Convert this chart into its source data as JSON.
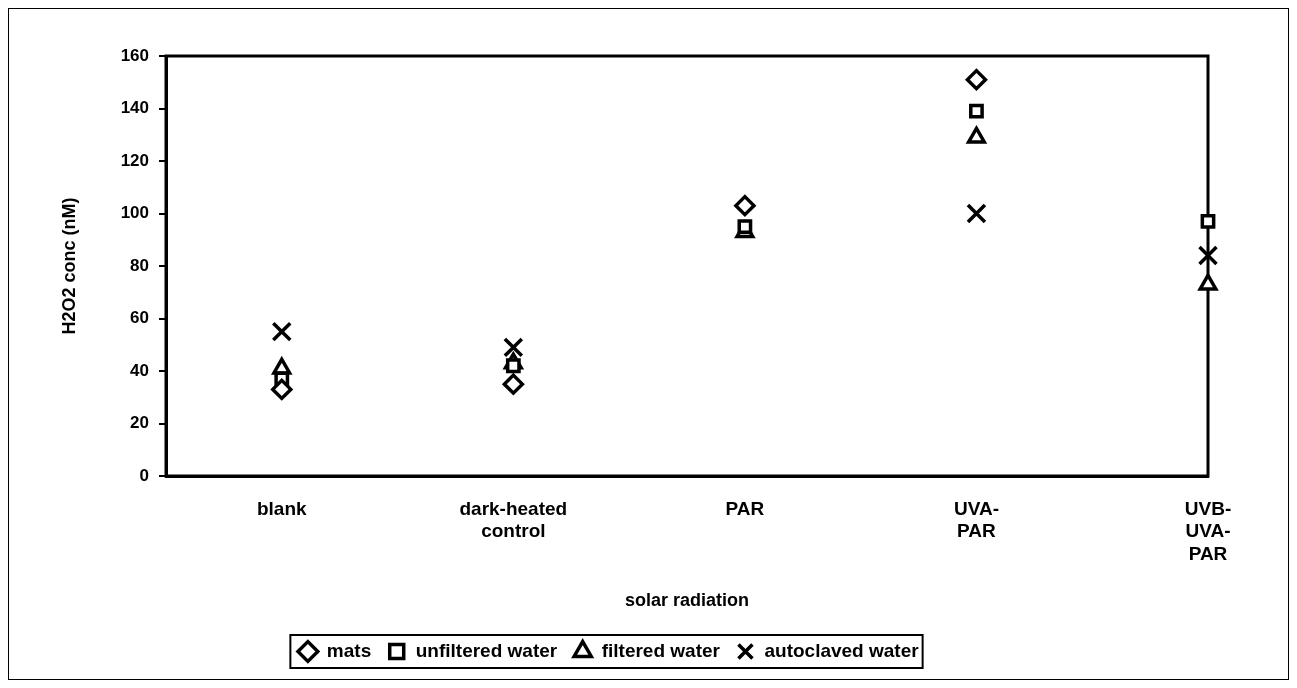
{
  "chart_data": {
    "type": "scatter",
    "xlabel": "solar radiation",
    "ylabel": "H2O2 conc (nM)",
    "categories": [
      "blank",
      "dark-heated control",
      "PAR",
      "UVA-PAR",
      "UVB-UVA-PAR"
    ],
    "series": [
      {
        "name": "mats",
        "color": "#000000",
        "marker": "diamond",
        "values": [
          33,
          35,
          103,
          151,
          null
        ]
      },
      {
        "name": "unfiltered water",
        "color": "#000000",
        "marker": "square",
        "values": [
          37,
          42,
          95,
          139,
          97
        ]
      },
      {
        "name": "filtered water",
        "color": "#000000",
        "marker": "triangle",
        "values": [
          41,
          43,
          93,
          129,
          73
        ]
      },
      {
        "name": "autoclaved water",
        "color": "#000000",
        "marker": "cross",
        "values": [
          55,
          49,
          null,
          100,
          84
        ]
      }
    ],
    "ylim": [
      0,
      160
    ],
    "yticks": [
      0,
      20,
      40,
      60,
      80,
      100,
      120,
      140,
      160
    ],
    "legend": "bottom"
  }
}
